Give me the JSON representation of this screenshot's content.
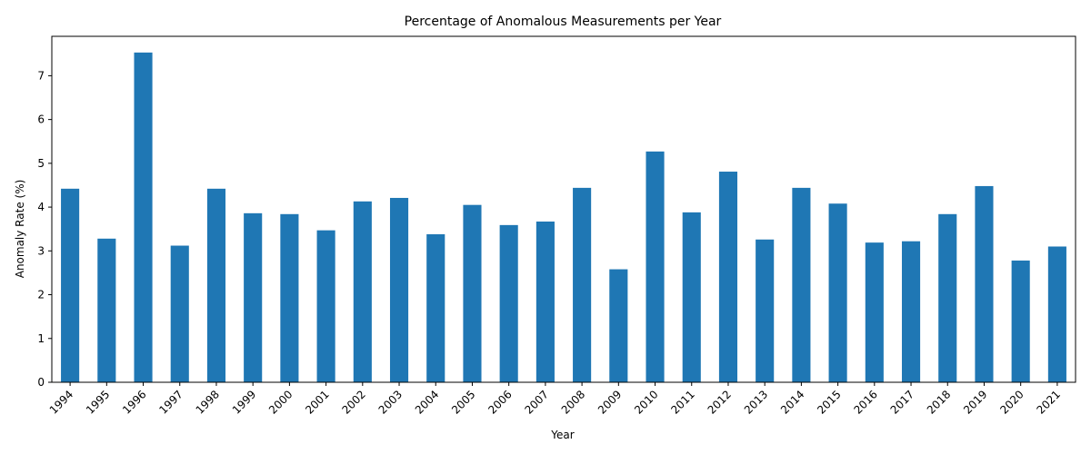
{
  "chart_data": {
    "type": "bar",
    "title": "Percentage of Anomalous Measurements per Year",
    "xlabel": "Year",
    "ylabel": "Anomaly Rate (%)",
    "categories": [
      "1994",
      "1995",
      "1996",
      "1997",
      "1998",
      "1999",
      "2000",
      "2001",
      "2002",
      "2003",
      "2004",
      "2005",
      "2006",
      "2007",
      "2008",
      "2009",
      "2010",
      "2011",
      "2012",
      "2013",
      "2014",
      "2015",
      "2016",
      "2017",
      "2018",
      "2019",
      "2020",
      "2021"
    ],
    "values": [
      4.42,
      3.28,
      7.53,
      3.12,
      4.42,
      3.86,
      3.84,
      3.47,
      4.13,
      4.21,
      3.38,
      4.05,
      3.59,
      3.67,
      4.44,
      2.58,
      5.27,
      3.88,
      4.81,
      3.26,
      4.44,
      4.08,
      3.19,
      3.22,
      3.84,
      4.48,
      2.78,
      3.1
    ],
    "ylim": [
      0,
      7.9
    ],
    "yticks": [
      0,
      1,
      2,
      3,
      4,
      5,
      6,
      7
    ],
    "bar_color": "#1f77b4",
    "grid": false,
    "legend": "none"
  }
}
